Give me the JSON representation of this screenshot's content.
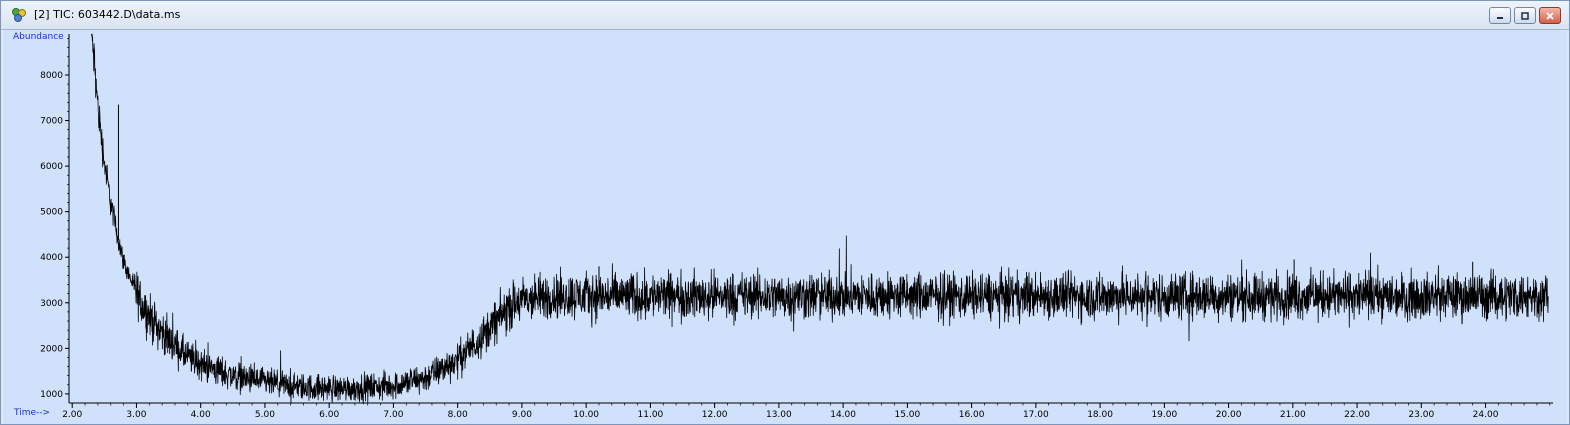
{
  "window": {
    "title": "[2] TIC: 603442.D\\data.ms",
    "buttons": [
      "minimize",
      "restore",
      "close"
    ]
  },
  "chart_data": {
    "type": "line",
    "ylabel": "Abundance",
    "xlabel": "Time-->",
    "xlim": [
      1.95,
      25.05
    ],
    "ylim": [
      800,
      8900
    ],
    "x_ticks": [
      "2.00",
      "3.00",
      "4.00",
      "5.00",
      "6.00",
      "7.00",
      "8.00",
      "9.00",
      "10.00",
      "11.00",
      "12.00",
      "13.00",
      "14.00",
      "15.00",
      "16.00",
      "17.00",
      "18.00",
      "19.00",
      "20.00",
      "21.00",
      "22.00",
      "23.00",
      "24.00"
    ],
    "y_ticks": [
      "1000",
      "2000",
      "3000",
      "4000",
      "5000",
      "6000",
      "7000",
      "8000"
    ],
    "series": [
      {
        "x": [
          2.3,
          2.35,
          2.4,
          2.5,
          2.6,
          2.7,
          2.8,
          3.0,
          3.2,
          3.4,
          3.6,
          3.8,
          4.0,
          4.5,
          5.0,
          5.5,
          6.0,
          6.5,
          7.0,
          7.5,
          8.0,
          8.3,
          8.6,
          8.8,
          9.0,
          9.5,
          10.0,
          11.0,
          12.0,
          13.0,
          14.0,
          15.0,
          16.0,
          17.0,
          18.0,
          19.0,
          20.0,
          21.0,
          22.0,
          23.0,
          24.0,
          25.0
        ],
        "y": [
          8900,
          8200,
          7300,
          6100,
          5200,
          4500,
          3900,
          3200,
          2700,
          2350,
          2050,
          1800,
          1650,
          1400,
          1250,
          1150,
          1120,
          1130,
          1180,
          1350,
          1750,
          2150,
          2600,
          2900,
          3050,
          3150,
          3150,
          3150,
          3150,
          3150,
          3150,
          3150,
          3150,
          3150,
          3150,
          3150,
          3150,
          3150,
          3150,
          3150,
          3150,
          3150
        ],
        "noise_amplitude": 250
      }
    ],
    "spikes": [
      {
        "x": 2.72,
        "y": 7350
      },
      {
        "x": 10.2,
        "y": 3800
      },
      {
        "x": 21.02,
        "y": 3950
      },
      {
        "x": 23.8,
        "y": 3900
      }
    ],
    "colors": {
      "plot_bg": "#d0e1fb",
      "trace": "#000000",
      "axis_label": "#1a2fd9"
    },
    "grid": false
  }
}
